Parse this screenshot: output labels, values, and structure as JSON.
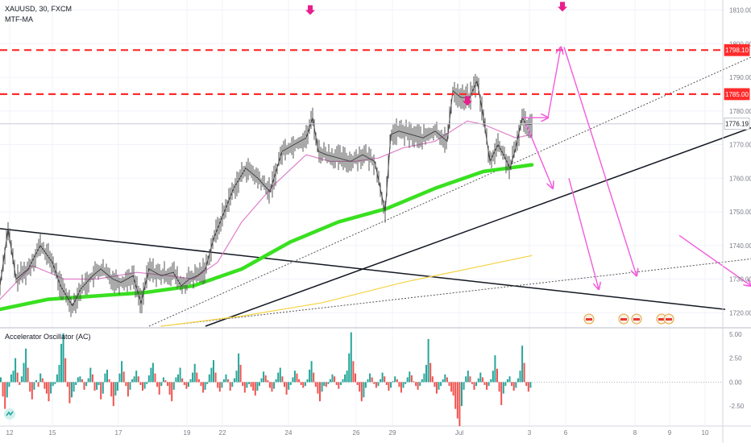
{
  "header": {
    "symbol_line": "XAUUSD, 30, FXCM",
    "indicator_label": "MTF-MA"
  },
  "oscillator": {
    "label": "Accelerator Oscillator (AC)"
  },
  "chart_data": [
    {
      "type": "candlestick",
      "symbol": "XAUUSD",
      "timeframe": "30",
      "source": "FXCM",
      "y_axis": {
        "ticks": [
          "1810.00",
          "1800.00",
          "1790.00",
          "1780.00",
          "1770.00",
          "1760.00",
          "1750.00",
          "1740.00",
          "1730.00",
          "1720.00"
        ],
        "range": [
          1716,
          1813
        ]
      },
      "x_axis": {
        "ticks": [
          "12",
          "15",
          "17",
          "19",
          "22",
          "24",
          "26",
          "29",
          "Jul",
          "3",
          "6",
          "8",
          "9",
          "10"
        ]
      },
      "price_labels": [
        {
          "value": "1798.10",
          "color": "#ff2b2b",
          "style": "dashed"
        },
        {
          "value": "1785.00",
          "color": "#ff2b2b",
          "style": "dashed"
        },
        {
          "value": "1776.19",
          "color": "#131722",
          "style": "current"
        }
      ],
      "series": [
        {
          "name": "XAUUSD",
          "style": "ohlc-bars",
          "color": "#555555",
          "path": [
            [
              0,
              1728
            ],
            [
              10,
              1745
            ],
            [
              20,
              1730
            ],
            [
              35,
              1733
            ],
            [
              50,
              1740
            ],
            [
              65,
              1735
            ],
            [
              75,
              1728
            ],
            [
              90,
              1722
            ],
            [
              100,
              1727
            ],
            [
              115,
              1731
            ],
            [
              125,
              1733
            ],
            [
              140,
              1730
            ],
            [
              150,
              1729
            ],
            [
              165,
              1731
            ],
            [
              175,
              1723
            ],
            [
              185,
              1733
            ],
            [
              200,
              1731
            ],
            [
              215,
              1732
            ],
            [
              225,
              1728
            ],
            [
              235,
              1730
            ],
            [
              245,
              1731
            ],
            [
              255,
              1733
            ],
            [
              265,
              1742
            ],
            [
              275,
              1748
            ],
            [
              290,
              1757
            ],
            [
              305,
              1763
            ],
            [
              320,
              1760
            ],
            [
              335,
              1756
            ],
            [
              350,
              1768
            ],
            [
              365,
              1770
            ],
            [
              380,
              1772
            ],
            [
              388,
              1778
            ],
            [
              395,
              1768
            ],
            [
              405,
              1767
            ],
            [
              420,
              1766
            ],
            [
              435,
              1765
            ],
            [
              450,
              1767
            ],
            [
              465,
              1765
            ],
            [
              478,
              1750
            ],
            [
              485,
              1773
            ],
            [
              495,
              1774
            ],
            [
              510,
              1773
            ],
            [
              525,
              1772
            ],
            [
              540,
              1774
            ],
            [
              555,
              1771
            ],
            [
              562,
              1786
            ],
            [
              572,
              1784
            ],
            [
              583,
              1784
            ],
            [
              592,
              1789
            ],
            [
              600,
              1778
            ],
            [
              608,
              1765
            ],
            [
              618,
              1770
            ],
            [
              625,
              1767
            ],
            [
              633,
              1763
            ],
            [
              640,
              1769
            ],
            [
              648,
              1778
            ],
            [
              653,
              1776
            ],
            [
              660,
              1776
            ]
          ]
        },
        {
          "name": "MA fast",
          "color": "#e07ec8",
          "path": [
            [
              0,
              1724
            ],
            [
              40,
              1734
            ],
            [
              80,
              1730
            ],
            [
              120,
              1730
            ],
            [
              170,
              1732
            ],
            [
              210,
              1731
            ],
            [
              240,
              1730
            ],
            [
              270,
              1735
            ],
            [
              300,
              1747
            ],
            [
              340,
              1758
            ],
            [
              380,
              1767
            ],
            [
              410,
              1765
            ],
            [
              440,
              1765
            ],
            [
              470,
              1766
            ],
            [
              500,
              1769
            ],
            [
              540,
              1771
            ],
            [
              560,
              1774
            ],
            [
              580,
              1777
            ],
            [
              600,
              1776
            ],
            [
              620,
              1774
            ],
            [
              640,
              1772
            ],
            [
              660,
              1773
            ]
          ]
        },
        {
          "name": "MA slow",
          "color": "#39e020",
          "path": [
            [
              0,
              1721
            ],
            [
              60,
              1724
            ],
            [
              120,
              1725
            ],
            [
              180,
              1726
            ],
            [
              240,
              1728
            ],
            [
              300,
              1733
            ],
            [
              360,
              1741
            ],
            [
              420,
              1747
            ],
            [
              480,
              1751
            ],
            [
              540,
              1757
            ],
            [
              600,
              1762
            ],
            [
              630,
              1763
            ],
            [
              660,
              1764
            ]
          ]
        },
        {
          "name": "MA long",
          "color": "#f5d445",
          "path": [
            [
              200,
              1716
            ],
            [
              300,
              1719
            ],
            [
              400,
              1723
            ],
            [
              500,
              1729
            ],
            [
              580,
              1733
            ],
            [
              660,
              1737
            ]
          ]
        }
      ],
      "annotations": {
        "trendlines": [
          {
            "from": [
              0,
              1745
            ],
            "to": [
              900,
              1721
            ],
            "color": "#131722",
            "style": "solid"
          },
          {
            "from": [
              255,
              1716
            ],
            "to": [
              932,
              1775
            ],
            "color": "#131722",
            "style": "solid"
          },
          {
            "from": [
              185,
              1716
            ],
            "to": [
              932,
              1796
            ],
            "color": "#555555",
            "style": "dotted"
          },
          {
            "from": [
              200,
              1716
            ],
            "to": [
              932,
              1736
            ],
            "color": "#555555",
            "style": "dotted"
          }
        ],
        "projection_arrows": [
          {
            "points": [
              [
                648,
                1778
              ],
              [
                680,
                1778
              ]
            ],
            "color": "#f25cdc"
          },
          {
            "points": [
              [
                680,
                1778
              ],
              [
                696,
                1799
              ]
            ],
            "color": "#f25cdc"
          },
          {
            "points": [
              [
                700,
                1799
              ],
              [
                790,
                1731
              ]
            ],
            "color": "#f25cdc"
          },
          {
            "points": [
              [
                653,
                1776
              ],
              [
                686,
                1757
              ]
            ],
            "color": "#f25cdc"
          },
          {
            "points": [
              [
                706,
                1760
              ],
              [
                743,
                1727
              ]
            ],
            "color": "#f25cdc"
          },
          {
            "points": [
              [
                843,
                1743
              ],
              [
                932,
                1728
              ]
            ],
            "color": "#f25cdc"
          }
        ],
        "marker_arrows": [
          [
            385,
            1810
          ],
          [
            580,
            1783
          ],
          [
            698,
            1811
          ]
        ]
      }
    },
    {
      "type": "bar",
      "title": "Accelerator Oscillator (AC)",
      "y_axis": {
        "ticks": [
          "5.00",
          "2.50",
          "0.00",
          "-2.50"
        ],
        "range": [
          -4.5,
          5.5
        ]
      },
      "colors": {
        "up": "#26a69a",
        "down": "#ef5350"
      },
      "values": [
        0.5,
        -1.5,
        -2.8,
        -1.6,
        -0.5,
        0.8,
        1.2,
        2.5,
        1.0,
        -0.3,
        0.6,
        2.0,
        3.5,
        1.5,
        -1.0,
        -1.8,
        -0.8,
        0.2,
        -0.5,
        0.9,
        0.4,
        -0.7,
        -1.2,
        -2.0,
        -1.2,
        -0.4,
        -0.2,
        0.8,
        1.8,
        4.0,
        5.1,
        2.5,
        -0.5,
        -2.2,
        -1.6,
        -1.0,
        -0.3,
        0.5,
        0.6,
        0.3,
        -0.8,
        -0.4,
        0.4,
        1.5,
        0.8,
        -0.9,
        -0.8,
        -0.3,
        -1.8,
        -1.2,
        0.9,
        1.3,
        0.3,
        -1.5,
        -2.5,
        -1.4,
        -0.9,
        0.9,
        2.2,
        1.1,
        -0.4,
        -1.5,
        -0.8,
        0.3,
        0.6,
        1.2,
        0.6,
        -0.3,
        -0.9,
        -0.7,
        -0.2,
        0.7,
        1.5,
        2.0,
        0.9,
        -0.5,
        -1.3,
        -0.4,
        0.5,
        0.2,
        -0.4,
        -1.3,
        -2.0,
        -0.8,
        0.5,
        0.8,
        1.5,
        0.4,
        -0.3,
        -0.7,
        -0.5,
        0.3,
        1.0,
        1.9,
        1.0,
        0.3,
        -0.4,
        -1.1,
        -0.8,
        -0.2,
        0.8,
        1.5,
        2.3,
        1.0,
        -0.6,
        -1.0,
        -0.6,
        0.3,
        0.8,
        0.3,
        -0.9,
        -0.5,
        0.4,
        1.2,
        3.0,
        1.8,
        -0.4,
        -1.1,
        -0.6,
        -0.2,
        -0.5,
        -0.9,
        -1.4,
        -0.9,
        -0.4,
        0.4,
        1.1,
        0.7,
        0.2,
        -0.6,
        -1.0,
        -0.7,
        0.3,
        1.0,
        1.5,
        0.6,
        -0.5,
        -1.3,
        -0.8,
        -0.3,
        0.5,
        1.2,
        0.9,
        0.3,
        -0.3,
        -0.6,
        -0.4,
        0.3,
        1.3,
        2.2,
        1.0,
        -0.5,
        -1.2,
        -2.0,
        -1.0,
        -0.4,
        -0.5,
        -0.2,
        0.3,
        0.8,
        0.6,
        -0.3,
        -0.7,
        -0.3,
        0.3,
        0.8,
        1.2,
        3.0,
        5.2,
        2.2,
        0.9,
        -0.3,
        -1.0,
        -2.0,
        -1.6,
        -0.6,
        0.3,
        0.9,
        0.5,
        -0.2,
        -0.6,
        -0.4,
        0.3,
        1.0,
        0.6,
        -0.3,
        -0.9,
        -0.6,
        0.1,
        0.6,
        0.3,
        -0.5,
        -1.1,
        -0.6,
        -0.2,
        0.5,
        1.1,
        0.7,
        0.1,
        -0.4,
        -0.8,
        -0.4,
        0.3,
        0.9,
        1.8,
        4.5,
        2.0,
        0.6,
        -0.5,
        -1.2,
        -0.8,
        -0.4,
        0.3,
        0.8,
        0.5,
        -0.4,
        -1.0,
        -1.4,
        -2.8,
        -3.8,
        -4.6,
        -2.5,
        -0.8,
        0.6,
        1.2,
        0.6,
        -0.2,
        -0.8,
        -0.4,
        0.4,
        1.0,
        0.5,
        -0.3,
        -0.8,
        -0.4,
        0.3,
        1.2,
        2.8,
        1.4,
        -1.0,
        -2.4,
        -1.2,
        -0.4,
        0.3,
        0.6,
        -0.4,
        -0.9,
        -0.6,
        0.4,
        1.2,
        3.8,
        2.0,
        -0.4,
        -1.0,
        -0.6
      ]
    }
  ]
}
